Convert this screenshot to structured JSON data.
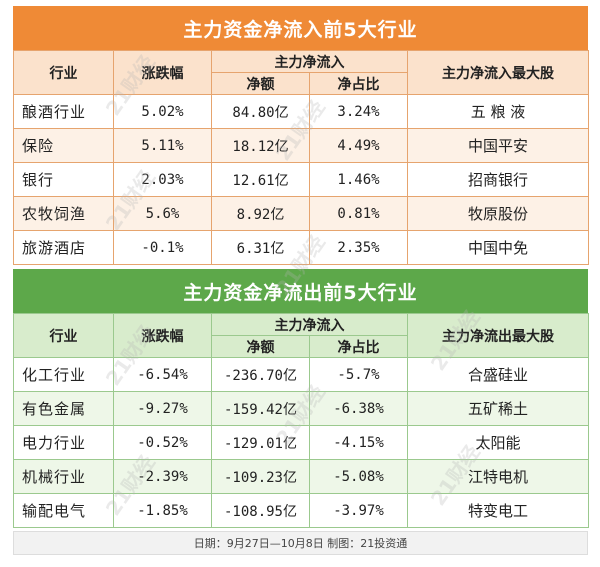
{
  "inflow": {
    "title": "主力资金净流入前5大行业",
    "headers": {
      "industry": "行业",
      "change": "涨跌幅",
      "group": "主力净流入",
      "net": "净额",
      "ratio": "净占比",
      "top_stock": "主力净流入最大股"
    },
    "rows": [
      {
        "industry": "酿酒行业",
        "change": "5.02%",
        "net": "84.80亿",
        "ratio": "3.24%",
        "top_stock": "五 粮 液"
      },
      {
        "industry": "保险",
        "change": "5.11%",
        "net": "18.12亿",
        "ratio": "4.49%",
        "top_stock": "中国平安"
      },
      {
        "industry": "银行",
        "change": "2.03%",
        "net": "12.61亿",
        "ratio": "1.46%",
        "top_stock": "招商银行"
      },
      {
        "industry": "农牧饲渔",
        "change": "5.6%",
        "net": "8.92亿",
        "ratio": "0.81%",
        "top_stock": "牧原股份"
      },
      {
        "industry": "旅游酒店",
        "change": "-0.1%",
        "net": "6.31亿",
        "ratio": "2.35%",
        "top_stock": "中国中免"
      }
    ]
  },
  "outflow": {
    "title": "主力资金净流出前5大行业",
    "headers": {
      "industry": "行业",
      "change": "涨跌幅",
      "group": "主力净流入",
      "net": "净额",
      "ratio": "净占比",
      "top_stock": "主力净流出最大股"
    },
    "rows": [
      {
        "industry": "化工行业",
        "change": "-6.54%",
        "net": "-236.70亿",
        "ratio": "-5.7%",
        "top_stock": "合盛硅业"
      },
      {
        "industry": "有色金属",
        "change": "-9.27%",
        "net": "-159.42亿",
        "ratio": "-6.38%",
        "top_stock": "五矿稀土"
      },
      {
        "industry": "电力行业",
        "change": "-0.52%",
        "net": "-129.01亿",
        "ratio": "-4.15%",
        "top_stock": "太阳能"
      },
      {
        "industry": "机械行业",
        "change": "-2.39%",
        "net": "-109.23亿",
        "ratio": "-5.08%",
        "top_stock": "江特电机"
      },
      {
        "industry": "输配电气",
        "change": "-1.85%",
        "net": "-108.95亿",
        "ratio": "-3.97%",
        "top_stock": "特变电工"
      }
    ]
  },
  "footer": "日期：9月27日—10月8日  制图：21投资通",
  "watermark": "21财经",
  "colors": {
    "inflow_accent": "#ef8a36",
    "outflow_accent": "#5da84a"
  }
}
